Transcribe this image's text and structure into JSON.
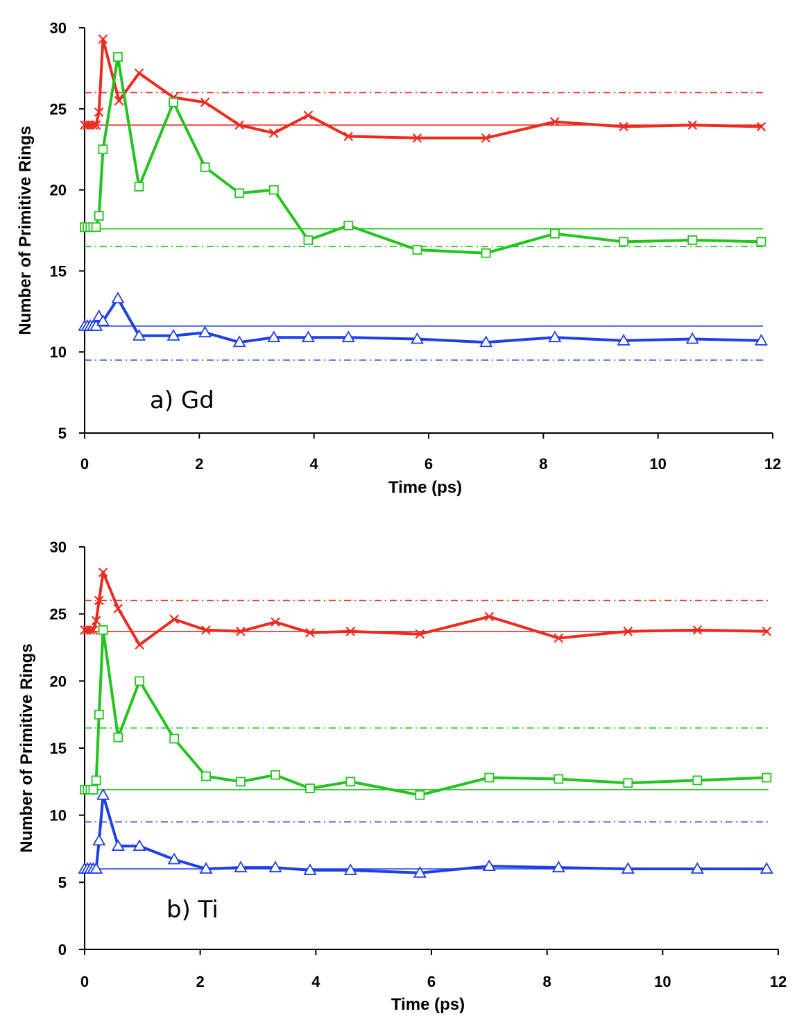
{
  "chart_data": [
    {
      "type": "line",
      "annotation": "a) Gd",
      "xlabel": "Time (ps)",
      "ylabel": "Number of Primitive Rings",
      "xlim": [
        0,
        12
      ],
      "ylim": [
        5,
        30
      ],
      "xticks": [
        0,
        2,
        4,
        6,
        8,
        10,
        12
      ],
      "yticks": [
        5,
        10,
        15,
        20,
        25,
        30
      ],
      "grid": false,
      "series": [
        {
          "color": "#ee2a1e",
          "marker": "x",
          "x": [
            0,
            0.05,
            0.1,
            0.15,
            0.2,
            0.25,
            0.32,
            0.6,
            0.95,
            1.55,
            2.1,
            2.7,
            3.3,
            3.9,
            4.6,
            5.8,
            7.0,
            8.2,
            9.4,
            10.6,
            11.8
          ],
          "y": [
            24,
            24,
            24,
            24,
            24,
            24.8,
            29.3,
            25.5,
            27.2,
            25.7,
            25.4,
            24.0,
            23.5,
            24.6,
            23.3,
            23.2,
            23.2,
            24.2,
            23.9,
            24.0,
            23.9
          ]
        },
        {
          "color": "#22c41e",
          "marker": "square",
          "x": [
            0,
            0.05,
            0.1,
            0.15,
            0.2,
            0.25,
            0.32,
            0.58,
            0.95,
            1.55,
            2.1,
            2.7,
            3.3,
            3.9,
            4.6,
            5.8,
            7.0,
            8.2,
            9.4,
            10.6,
            11.8
          ],
          "y": [
            17.7,
            17.7,
            17.7,
            17.7,
            17.7,
            18.4,
            22.5,
            28.2,
            20.2,
            25.4,
            21.4,
            19.8,
            20.0,
            16.9,
            17.8,
            16.3,
            16.1,
            17.3,
            16.8,
            16.9,
            16.8
          ]
        },
        {
          "color": "#1f3fe6",
          "marker": "triangle",
          "x": [
            0,
            0.05,
            0.1,
            0.15,
            0.2,
            0.25,
            0.32,
            0.58,
            0.95,
            1.55,
            2.1,
            2.7,
            3.3,
            3.9,
            4.6,
            5.8,
            7.0,
            8.2,
            9.4,
            10.6,
            11.8
          ],
          "y": [
            11.6,
            11.6,
            11.6,
            11.6,
            11.6,
            12.2,
            11.9,
            13.3,
            11.0,
            11.0,
            11.2,
            10.6,
            10.9,
            10.9,
            10.9,
            10.8,
            10.6,
            10.9,
            10.7,
            10.8,
            10.7
          ]
        }
      ],
      "reference_lines": [
        {
          "color": "#ee2a1e",
          "style": "solid",
          "y": 24.0
        },
        {
          "color": "#ee2a1e",
          "style": "dash-dot",
          "y": 26.0
        },
        {
          "color": "#22c41e",
          "style": "solid",
          "y": 17.6
        },
        {
          "color": "#22c41e",
          "style": "dash-dot",
          "y": 16.5
        },
        {
          "color": "#1f3fe6",
          "style": "solid",
          "y": 11.6
        },
        {
          "color": "#1f3fe6",
          "style": "dash-dot",
          "y": 9.5
        }
      ]
    },
    {
      "type": "line",
      "annotation": "b) Ti",
      "xlabel": "Time (ps)",
      "ylabel": "Number of Primitive Rings",
      "xlim": [
        0,
        12
      ],
      "ylim": [
        0,
        30
      ],
      "xticks": [
        0,
        2,
        4,
        6,
        8,
        10,
        12
      ],
      "yticks": [
        0,
        5,
        10,
        15,
        20,
        25,
        30
      ],
      "grid": false,
      "series": [
        {
          "color": "#ee2a1e",
          "marker": "x",
          "x": [
            0,
            0.05,
            0.1,
            0.15,
            0.2,
            0.25,
            0.32,
            0.58,
            0.95,
            1.55,
            2.1,
            2.7,
            3.3,
            3.9,
            4.6,
            5.8,
            7.0,
            8.2,
            9.4,
            10.6,
            11.8
          ],
          "y": [
            23.8,
            23.8,
            23.8,
            23.8,
            24.5,
            26.0,
            28.1,
            25.4,
            22.7,
            24.6,
            23.8,
            23.7,
            24.4,
            23.6,
            23.7,
            23.5,
            24.8,
            23.2,
            23.7,
            23.8,
            23.7
          ]
        },
        {
          "color": "#22c41e",
          "marker": "square",
          "x": [
            0,
            0.05,
            0.1,
            0.15,
            0.2,
            0.25,
            0.32,
            0.58,
            0.95,
            1.55,
            2.1,
            2.7,
            3.3,
            3.9,
            4.6,
            5.8,
            7.0,
            8.2,
            9.4,
            10.6,
            11.8
          ],
          "y": [
            11.9,
            11.9,
            11.9,
            11.9,
            12.6,
            17.5,
            23.8,
            15.8,
            20.0,
            15.7,
            12.9,
            12.5,
            13.0,
            12.0,
            12.5,
            11.5,
            12.8,
            12.7,
            12.4,
            12.6,
            12.8
          ]
        },
        {
          "color": "#1f3fe6",
          "marker": "triangle",
          "x": [
            0,
            0.05,
            0.1,
            0.15,
            0.2,
            0.25,
            0.32,
            0.58,
            0.95,
            1.55,
            2.1,
            2.7,
            3.3,
            3.9,
            4.6,
            5.8,
            7.0,
            8.2,
            9.4,
            10.6,
            11.8
          ],
          "y": [
            6.0,
            6.0,
            6.0,
            6.0,
            6.0,
            8.1,
            11.5,
            7.7,
            7.7,
            6.7,
            6.0,
            6.1,
            6.1,
            5.9,
            5.9,
            5.7,
            6.2,
            6.1,
            6.0,
            6.0,
            6.0
          ]
        }
      ],
      "reference_lines": [
        {
          "color": "#ee2a1e",
          "style": "solid",
          "y": 23.7
        },
        {
          "color": "#ee2a1e",
          "style": "dash-dot",
          "y": 26.0
        },
        {
          "color": "#22c41e",
          "style": "solid",
          "y": 11.9
        },
        {
          "color": "#22c41e",
          "style": "dash-dot",
          "y": 16.5
        },
        {
          "color": "#1f3fe6",
          "style": "solid",
          "y": 6.0
        },
        {
          "color": "#1f3fe6",
          "style": "dash-dot",
          "y": 9.5
        }
      ]
    }
  ]
}
